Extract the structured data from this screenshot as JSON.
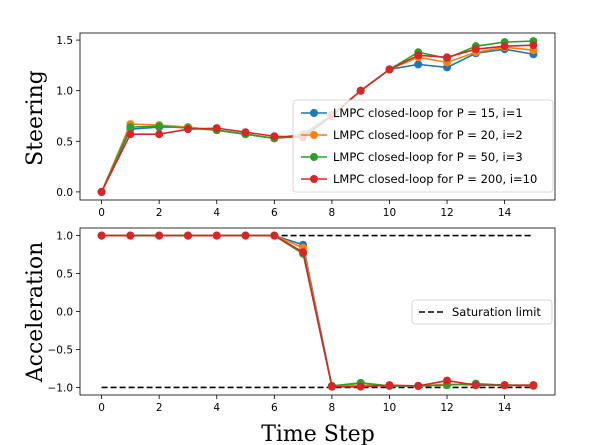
{
  "chart_data": [
    {
      "type": "line",
      "ylabel": "Steering",
      "xlabel": "",
      "xlim": [
        -0.75,
        15.75
      ],
      "ylim": [
        -0.08,
        1.57
      ],
      "xticks": [
        0,
        2,
        4,
        6,
        8,
        10,
        12,
        14
      ],
      "yticks": [
        0.0,
        0.5,
        1.0,
        1.5
      ],
      "ytick_labels": [
        "0.0",
        "0.5",
        "1.0",
        "1.5"
      ],
      "legend_position": "center-right",
      "x": [
        0,
        1,
        2,
        3,
        4,
        5,
        6,
        7,
        8,
        9,
        10,
        11,
        12,
        13,
        14,
        15
      ],
      "series": [
        {
          "name": "LMPC closed-loop for P = 15, i=1",
          "color": "#1f77b4",
          "values": [
            0.0,
            0.62,
            0.64,
            0.64,
            0.61,
            0.57,
            0.53,
            0.57,
            0.76,
            1.0,
            1.21,
            1.26,
            1.23,
            1.37,
            1.41,
            1.36
          ]
        },
        {
          "name": "LMPC closed-loop for P = 20, i=2",
          "color": "#ff7f0e",
          "values": [
            0.0,
            0.67,
            0.66,
            0.64,
            0.61,
            0.57,
            0.53,
            0.56,
            0.76,
            1.0,
            1.21,
            1.33,
            1.28,
            1.38,
            1.43,
            1.4
          ]
        },
        {
          "name": "LMPC closed-loop for P = 50, i=3",
          "color": "#2ca02c",
          "values": [
            0.0,
            0.64,
            0.65,
            0.63,
            0.61,
            0.57,
            0.53,
            0.55,
            0.76,
            1.0,
            1.21,
            1.38,
            1.32,
            1.44,
            1.48,
            1.49
          ]
        },
        {
          "name": "LMPC closed-loop for P = 200, i=10",
          "color": "#d62728",
          "values": [
            0.0,
            0.57,
            0.57,
            0.62,
            0.63,
            0.59,
            0.55,
            0.54,
            0.75,
            1.0,
            1.21,
            1.35,
            1.33,
            1.41,
            1.44,
            1.45
          ]
        }
      ]
    },
    {
      "type": "line",
      "ylabel": "Acceleration",
      "xlabel": "Time Step",
      "xlim": [
        -0.75,
        15.75
      ],
      "ylim": [
        -1.1,
        1.1
      ],
      "xticks": [
        0,
        2,
        4,
        6,
        8,
        10,
        12,
        14
      ],
      "yticks": [
        -1.0,
        -0.5,
        0.0,
        0.5,
        1.0
      ],
      "ytick_labels": [
        "−1.0",
        "−0.5",
        "0.0",
        "0.5",
        "1.0"
      ],
      "legend_position": "center-right",
      "x": [
        0,
        1,
        2,
        3,
        4,
        5,
        6,
        7,
        8,
        9,
        10,
        11,
        12,
        13,
        14,
        15
      ],
      "series": [
        {
          "name": "",
          "color": "#1f77b4",
          "values": [
            1.0,
            1.0,
            1.0,
            1.0,
            1.0,
            1.0,
            1.0,
            0.88,
            -0.98,
            -0.97,
            -0.98,
            -0.98,
            -0.96,
            -0.96,
            -0.97,
            -0.98
          ]
        },
        {
          "name": "",
          "color": "#ff7f0e",
          "values": [
            1.0,
            1.0,
            1.0,
            1.0,
            1.0,
            1.0,
            1.0,
            0.84,
            -0.99,
            -0.97,
            -0.98,
            -0.98,
            -0.96,
            -0.97,
            -0.97,
            -0.98
          ]
        },
        {
          "name": "",
          "color": "#2ca02c",
          "values": [
            1.0,
            1.0,
            1.0,
            1.0,
            1.0,
            1.0,
            1.0,
            0.76,
            -0.98,
            -0.94,
            -0.98,
            -0.98,
            -0.97,
            -0.95,
            -0.97,
            -0.97
          ]
        },
        {
          "name": "",
          "color": "#d62728",
          "values": [
            1.0,
            1.0,
            1.0,
            1.0,
            1.0,
            1.0,
            1.0,
            0.78,
            -0.99,
            -0.99,
            -0.97,
            -0.98,
            -0.91,
            -0.97,
            -0.97,
            -0.97
          ]
        }
      ],
      "reference_lines": [
        {
          "name": "Saturation limit",
          "y": 1.0,
          "x_range": [
            0,
            15
          ],
          "style": "dashed",
          "color": "#000000"
        },
        {
          "name": "",
          "y": -1.0,
          "x_range": [
            0,
            15
          ],
          "style": "dashed",
          "color": "#000000"
        }
      ],
      "legend_entries": [
        "Saturation limit"
      ]
    }
  ]
}
